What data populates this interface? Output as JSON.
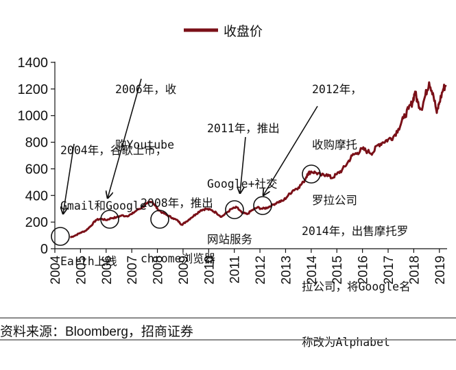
{
  "chart_data": {
    "type": "line",
    "series": [
      {
        "name": "收盘价",
        "color": "#7a1018"
      }
    ],
    "legend_label": "收盘价",
    "legend_position": "top-center",
    "xlabel": "",
    "ylabel": "",
    "x_tick_labels": [
      "2004",
      "2005",
      "2006",
      "2007",
      "2008",
      "2009",
      "2010",
      "2011",
      "2012",
      "2013",
      "2014",
      "2015",
      "2016",
      "2017",
      "2018",
      "2019"
    ],
    "y_tick_labels": [
      "0",
      "200",
      "400",
      "600",
      "800",
      "1000",
      "1200",
      "1400"
    ],
    "xlim": [
      2004.0,
      2019.3
    ],
    "ylim": [
      0,
      1400
    ],
    "points": [
      [
        2004.6,
        85
      ],
      [
        2004.8,
        100
      ],
      [
        2005.0,
        120
      ],
      [
        2005.2,
        135
      ],
      [
        2005.4,
        170
      ],
      [
        2005.6,
        215
      ],
      [
        2005.8,
        225
      ],
      [
        2006.0,
        215
      ],
      [
        2006.2,
        230
      ],
      [
        2006.4,
        235
      ],
      [
        2006.6,
        250
      ],
      [
        2006.8,
        245
      ],
      [
        2007.0,
        260
      ],
      [
        2007.2,
        290
      ],
      [
        2007.4,
        310
      ],
      [
        2007.6,
        340
      ],
      [
        2007.8,
        350
      ],
      [
        2007.9,
        330
      ],
      [
        2008.0,
        300
      ],
      [
        2008.2,
        270
      ],
      [
        2008.4,
        250
      ],
      [
        2008.6,
        230
      ],
      [
        2008.8,
        210
      ],
      [
        2008.95,
        180
      ],
      [
        2009.1,
        200
      ],
      [
        2009.3,
        230
      ],
      [
        2009.5,
        260
      ],
      [
        2009.7,
        290
      ],
      [
        2009.9,
        300
      ],
      [
        2010.1,
        290
      ],
      [
        2010.3,
        270
      ],
      [
        2010.5,
        240
      ],
      [
        2010.7,
        270
      ],
      [
        2010.9,
        300
      ],
      [
        2011.1,
        310
      ],
      [
        2011.3,
        270
      ],
      [
        2011.5,
        260
      ],
      [
        2011.7,
        290
      ],
      [
        2011.9,
        310
      ],
      [
        2012.1,
        300
      ],
      [
        2012.3,
        310
      ],
      [
        2012.5,
        330
      ],
      [
        2012.7,
        350
      ],
      [
        2012.9,
        360
      ],
      [
        2013.1,
        400
      ],
      [
        2013.3,
        440
      ],
      [
        2013.5,
        460
      ],
      [
        2013.7,
        500
      ],
      [
        2013.85,
        560
      ],
      [
        2014.0,
        580
      ],
      [
        2014.2,
        570
      ],
      [
        2014.4,
        550
      ],
      [
        2014.6,
        560
      ],
      [
        2014.8,
        530
      ],
      [
        2015.0,
        560
      ],
      [
        2015.2,
        590
      ],
      [
        2015.4,
        640
      ],
      [
        2015.6,
        700
      ],
      [
        2015.8,
        720
      ],
      [
        2016.0,
        750
      ],
      [
        2016.2,
        730
      ],
      [
        2016.4,
        720
      ],
      [
        2016.6,
        780
      ],
      [
        2016.8,
        800
      ],
      [
        2017.0,
        820
      ],
      [
        2017.2,
        840
      ],
      [
        2017.4,
        900
      ],
      [
        2017.6,
        980
      ],
      [
        2017.8,
        1050
      ],
      [
        2017.95,
        1100
      ],
      [
        2018.05,
        1180
      ],
      [
        2018.15,
        1100
      ],
      [
        2018.3,
        1050
      ],
      [
        2018.45,
        1150
      ],
      [
        2018.6,
        1250
      ],
      [
        2018.75,
        1170
      ],
      [
        2018.9,
        1020
      ],
      [
        2019.0,
        1100
      ],
      [
        2019.15,
        1200
      ],
      [
        2019.25,
        1230
      ]
    ]
  },
  "annotations": {
    "a2004": {
      "line1": "2004年，谷歌上市，",
      "line2": "Gmail和Google",
      "line3": "Earth上线"
    },
    "a2006": {
      "line1": "2006年，收",
      "line2": "购Youtube"
    },
    "a2008": {
      "line1": "2008年，推出",
      "line2": "chrome浏览器"
    },
    "a2011": {
      "line1": "2011年，推出",
      "line2": "Google+社交",
      "line3": "网站服务"
    },
    "a2012": {
      "line1": "2012年，",
      "line2": "收购摩托",
      "line3": "罗拉公司"
    },
    "a2014": {
      "line1": "2014年，出售摩托罗",
      "line2": "拉公司，将Google名",
      "line3": "称改为Alphabet"
    }
  },
  "source": "资料来源：Bloomberg，招商证券"
}
